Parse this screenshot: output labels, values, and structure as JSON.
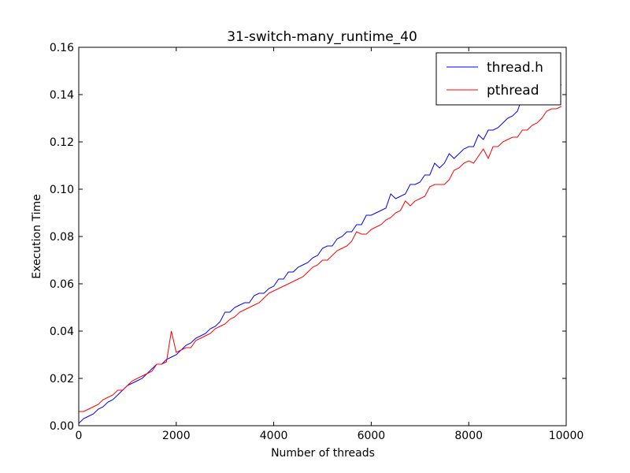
{
  "chart_data": {
    "type": "line",
    "title": "31-switch-many_runtime_40",
    "xlabel": "Number of threads",
    "ylabel": "Execution Time",
    "xlim": [
      0,
      10000
    ],
    "ylim": [
      0.0,
      0.16
    ],
    "xticks": [
      0,
      2000,
      4000,
      6000,
      8000,
      10000
    ],
    "xtick_labels": [
      "0",
      "2000",
      "4000",
      "6000",
      "8000",
      "10000"
    ],
    "yticks": [
      0.0,
      0.02,
      0.04,
      0.06,
      0.08,
      0.1,
      0.12,
      0.14,
      0.16
    ],
    "ytick_labels": [
      "0.00",
      "0.02",
      "0.04",
      "0.06",
      "0.08",
      "0.10",
      "0.12",
      "0.14",
      "0.16"
    ],
    "grid": false,
    "legend_position": "top-right",
    "x": [
      0,
      100,
      200,
      300,
      400,
      500,
      600,
      700,
      800,
      900,
      1000,
      1100,
      1200,
      1300,
      1400,
      1500,
      1600,
      1700,
      1800,
      1900,
      2000,
      2100,
      2200,
      2300,
      2400,
      2500,
      2600,
      2700,
      2800,
      2900,
      3000,
      3100,
      3200,
      3300,
      3400,
      3500,
      3600,
      3700,
      3800,
      3900,
      4000,
      4100,
      4200,
      4300,
      4400,
      4500,
      4600,
      4700,
      4800,
      4900,
      5000,
      5100,
      5200,
      5300,
      5400,
      5500,
      5600,
      5700,
      5800,
      5900,
      6000,
      6100,
      6200,
      6300,
      6400,
      6500,
      6600,
      6700,
      6800,
      6900,
      7000,
      7100,
      7200,
      7300,
      7400,
      7500,
      7600,
      7700,
      7800,
      7900,
      8000,
      8100,
      8200,
      8300,
      8400,
      8500,
      8600,
      8700,
      8800,
      8900,
      9000,
      9100,
      9200,
      9300,
      9400,
      9500,
      9600,
      9700,
      9800,
      9900
    ],
    "series": [
      {
        "name": "thread.h",
        "color": "#0000ff",
        "values": [
          0.001,
          0.003,
          0.004,
          0.005,
          0.007,
          0.008,
          0.01,
          0.011,
          0.013,
          0.015,
          0.017,
          0.018,
          0.019,
          0.02,
          0.022,
          0.024,
          0.026,
          0.026,
          0.028,
          0.029,
          0.03,
          0.032,
          0.034,
          0.035,
          0.037,
          0.038,
          0.039,
          0.041,
          0.042,
          0.044,
          0.048,
          0.048,
          0.05,
          0.051,
          0.052,
          0.052,
          0.055,
          0.056,
          0.056,
          0.058,
          0.059,
          0.062,
          0.062,
          0.065,
          0.065,
          0.067,
          0.068,
          0.069,
          0.071,
          0.072,
          0.075,
          0.076,
          0.076,
          0.079,
          0.08,
          0.082,
          0.082,
          0.085,
          0.085,
          0.089,
          0.089,
          0.09,
          0.091,
          0.092,
          0.098,
          0.096,
          0.097,
          0.098,
          0.102,
          0.102,
          0.103,
          0.106,
          0.106,
          0.111,
          0.109,
          0.111,
          0.115,
          0.113,
          0.115,
          0.117,
          0.118,
          0.118,
          0.123,
          0.121,
          0.125,
          0.125,
          0.126,
          0.128,
          0.13,
          0.131,
          0.133,
          0.139,
          0.141,
          0.142,
          0.142,
          0.143,
          0.144,
          0.144,
          0.146,
          0.144
        ]
      },
      {
        "name": "pthread",
        "color": "#ff0000",
        "values": [
          0.006,
          0.006,
          0.007,
          0.008,
          0.009,
          0.011,
          0.012,
          0.013,
          0.015,
          0.015,
          0.017,
          0.019,
          0.02,
          0.021,
          0.022,
          0.023,
          0.026,
          0.026,
          0.027,
          0.04,
          0.031,
          0.032,
          0.033,
          0.033,
          0.036,
          0.037,
          0.038,
          0.039,
          0.041,
          0.042,
          0.043,
          0.045,
          0.046,
          0.048,
          0.049,
          0.05,
          0.051,
          0.052,
          0.054,
          0.056,
          0.057,
          0.058,
          0.059,
          0.06,
          0.061,
          0.062,
          0.063,
          0.065,
          0.067,
          0.068,
          0.07,
          0.07,
          0.072,
          0.074,
          0.075,
          0.076,
          0.078,
          0.082,
          0.081,
          0.081,
          0.083,
          0.084,
          0.085,
          0.087,
          0.088,
          0.09,
          0.091,
          0.095,
          0.093,
          0.095,
          0.096,
          0.097,
          0.101,
          0.102,
          0.102,
          0.102,
          0.104,
          0.108,
          0.109,
          0.111,
          0.112,
          0.111,
          0.114,
          0.117,
          0.113,
          0.118,
          0.118,
          0.12,
          0.121,
          0.122,
          0.122,
          0.125,
          0.125,
          0.127,
          0.128,
          0.13,
          0.133,
          0.134,
          0.134,
          0.135
        ]
      }
    ]
  }
}
